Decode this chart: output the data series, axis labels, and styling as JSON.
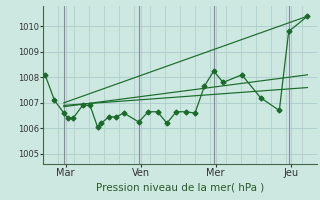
{
  "background_color": "#cce8e0",
  "grid_color": "#aacccc",
  "line_color": "#1a6b2a",
  "ylabel_ticks": [
    1005,
    1006,
    1007,
    1008,
    1009,
    1010
  ],
  "ylim": [
    1004.6,
    1010.8
  ],
  "xlim": [
    -0.05,
    7.25
  ],
  "xlabel": "Pression niveau de la mer( hPa )",
  "day_labels": [
    "Mar",
    "Ven",
    "Mer",
    "Jeu"
  ],
  "day_positions": [
    0.55,
    2.55,
    4.55,
    6.55
  ],
  "day_vlines": [
    0.5,
    2.5,
    4.5,
    6.5
  ],
  "series1_x": [
    0.0,
    0.25,
    0.5,
    0.6,
    0.75,
    1.0,
    1.2,
    1.4,
    1.5,
    1.7,
    1.9,
    2.1,
    2.5,
    2.75,
    3.0,
    3.25,
    3.5,
    3.75,
    4.0,
    4.25,
    4.5,
    4.75,
    5.25,
    5.75,
    6.25,
    6.5,
    7.0
  ],
  "series1_y": [
    1008.1,
    1007.1,
    1006.6,
    1006.4,
    1006.4,
    1006.9,
    1006.9,
    1006.05,
    1006.2,
    1006.45,
    1006.45,
    1006.6,
    1006.25,
    1006.65,
    1006.65,
    1006.2,
    1006.65,
    1006.65,
    1006.6,
    1007.65,
    1008.25,
    1007.8,
    1008.1,
    1007.2,
    1006.7,
    1009.8,
    1010.4
  ],
  "trend1_x": [
    0.5,
    7.0
  ],
  "trend1_y": [
    1007.0,
    1010.4
  ],
  "trend2_x": [
    0.5,
    7.0
  ],
  "trend2_y": [
    1006.85,
    1008.1
  ],
  "trend3_x": [
    0.5,
    7.0
  ],
  "trend3_y": [
    1006.9,
    1007.6
  ],
  "vline_color": "#888899",
  "spine_color": "#446644"
}
